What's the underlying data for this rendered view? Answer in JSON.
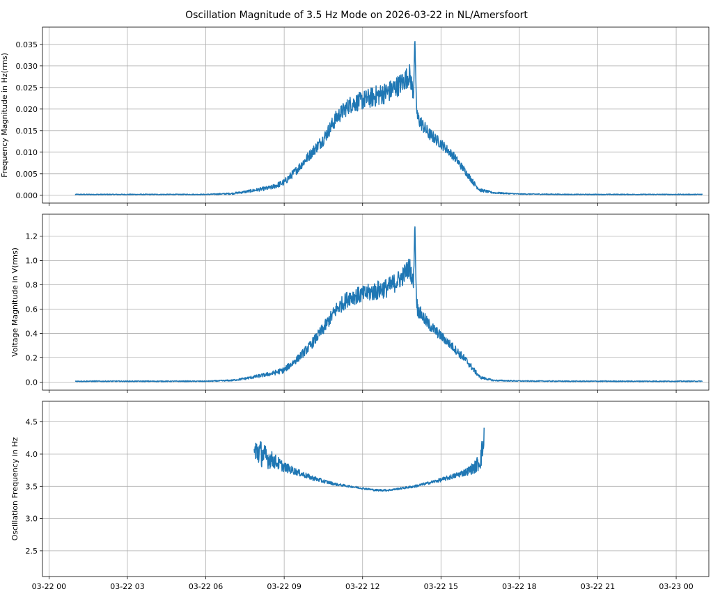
{
  "figure": {
    "title": "Oscillation Magnitude of 3.5 Hz Mode on 2026-03-22 in NL/Amersfoort"
  },
  "colors": {
    "line": "#1f77b4",
    "grid": "#b0b0b0",
    "axes": "#000000"
  },
  "chart_data": [
    {
      "type": "line",
      "ylabel": "Frequency Magnitude in Hz(rms)",
      "xlim": [
        -0.25,
        25.25
      ],
      "ylim": [
        -0.0018,
        0.039
      ],
      "yticks": [
        0.0,
        0.005,
        0.01,
        0.015,
        0.02,
        0.025,
        0.03,
        0.035
      ],
      "ytick_labels": [
        "0.000",
        "0.005",
        "0.010",
        "0.015",
        "0.020",
        "0.025",
        "0.030",
        "0.035"
      ],
      "grid": true,
      "series": [
        {
          "x_hours": [
            1.0,
            3.0,
            6.0,
            7.0,
            7.5,
            8.0,
            8.5,
            9.0,
            9.5,
            10.0,
            10.5,
            11.0,
            11.5,
            12.0,
            12.5,
            13.0,
            13.5,
            13.8,
            13.95,
            14.0,
            14.05,
            14.1,
            14.5,
            15.0,
            15.5,
            16.0,
            16.3,
            16.5,
            17.0,
            18.0,
            20.0,
            25.0
          ],
          "y": [
            0.0002,
            0.0002,
            0.0002,
            0.0004,
            0.0008,
            0.0013,
            0.0018,
            0.003,
            0.006,
            0.0095,
            0.013,
            0.018,
            0.021,
            0.022,
            0.023,
            0.024,
            0.026,
            0.028,
            0.0235,
            0.037,
            0.022,
            0.018,
            0.0145,
            0.012,
            0.009,
            0.005,
            0.0025,
            0.0012,
            0.0006,
            0.0003,
            0.0002,
            0.0002
          ],
          "noise": [
            0.0001,
            0.0001,
            0.0001,
            0.0002,
            0.0003,
            0.0004,
            0.0005,
            0.0008,
            0.001,
            0.0012,
            0.0015,
            0.0018,
            0.002,
            0.0022,
            0.0025,
            0.0025,
            0.0025,
            0.0025,
            0.002,
            0.0,
            0.002,
            0.0018,
            0.0015,
            0.0012,
            0.001,
            0.0008,
            0.0006,
            0.0004,
            0.0002,
            0.0001,
            0.0001,
            0.0001
          ]
        }
      ]
    },
    {
      "type": "line",
      "ylabel": "Voltage Magnitude in V(rms)",
      "xlim": [
        -0.25,
        25.25
      ],
      "ylim": [
        -0.065,
        1.38
      ],
      "yticks": [
        0.0,
        0.2,
        0.4,
        0.6,
        0.8,
        1.0,
        1.2
      ],
      "ytick_labels": [
        "0.0",
        "0.2",
        "0.4",
        "0.6",
        "0.8",
        "1.0",
        "1.2"
      ],
      "grid": true,
      "series": [
        {
          "x_hours": [
            1.0,
            3.0,
            6.0,
            7.0,
            7.5,
            8.0,
            8.5,
            9.0,
            9.5,
            10.0,
            10.5,
            11.0,
            11.5,
            12.0,
            12.5,
            13.0,
            13.5,
            13.8,
            13.95,
            14.0,
            14.05,
            14.1,
            14.5,
            15.0,
            15.5,
            16.0,
            16.3,
            16.5,
            17.0,
            18.0,
            20.0,
            25.0
          ],
          "y": [
            0.008,
            0.008,
            0.008,
            0.015,
            0.03,
            0.05,
            0.07,
            0.1,
            0.19,
            0.3,
            0.44,
            0.6,
            0.7,
            0.72,
            0.75,
            0.78,
            0.86,
            0.95,
            0.8,
            1.33,
            0.75,
            0.6,
            0.48,
            0.38,
            0.28,
            0.17,
            0.09,
            0.04,
            0.015,
            0.01,
            0.008,
            0.008
          ],
          "noise": [
            0.004,
            0.004,
            0.004,
            0.006,
            0.01,
            0.014,
            0.018,
            0.025,
            0.03,
            0.04,
            0.05,
            0.06,
            0.07,
            0.07,
            0.08,
            0.08,
            0.08,
            0.08,
            0.07,
            0.0,
            0.07,
            0.06,
            0.05,
            0.04,
            0.035,
            0.03,
            0.02,
            0.012,
            0.006,
            0.004,
            0.004,
            0.004
          ]
        }
      ]
    },
    {
      "type": "line",
      "ylabel": "Oscillation Frequency in Hz",
      "xlim": [
        -0.25,
        25.25
      ],
      "ylim": [
        2.1,
        4.82
      ],
      "yticks": [
        2.5,
        3.0,
        3.5,
        4.0,
        4.5
      ],
      "ytick_labels": [
        "2.5",
        "3.0",
        "3.5",
        "4.0",
        "4.5"
      ],
      "grid": true,
      "series": [
        {
          "x_hours": [
            7.85,
            8.0,
            8.3,
            8.6,
            9.0,
            9.5,
            10.0,
            10.5,
            11.0,
            11.5,
            12.0,
            12.5,
            13.0,
            13.5,
            14.0,
            14.5,
            15.0,
            15.5,
            16.0,
            16.3,
            16.5,
            16.65
          ],
          "y": [
            4.0,
            4.05,
            3.95,
            3.9,
            3.8,
            3.72,
            3.64,
            3.58,
            3.53,
            3.5,
            3.47,
            3.44,
            3.44,
            3.47,
            3.5,
            3.55,
            3.6,
            3.66,
            3.73,
            3.8,
            3.9,
            4.2
          ],
          "noise": [
            0.25,
            0.22,
            0.18,
            0.12,
            0.08,
            0.05,
            0.04,
            0.03,
            0.02,
            0.015,
            0.015,
            0.015,
            0.015,
            0.015,
            0.02,
            0.02,
            0.03,
            0.04,
            0.06,
            0.1,
            0.15,
            0.25
          ]
        }
      ]
    }
  ],
  "x_axis": {
    "ticks_hours": [
      0,
      3,
      6,
      9,
      12,
      15,
      18,
      21,
      24
    ],
    "tick_labels": [
      "03-22 00",
      "03-22 03",
      "03-22 06",
      "03-22 09",
      "03-22 12",
      "03-22 15",
      "03-22 18",
      "03-22 21",
      "03-23 00"
    ]
  }
}
